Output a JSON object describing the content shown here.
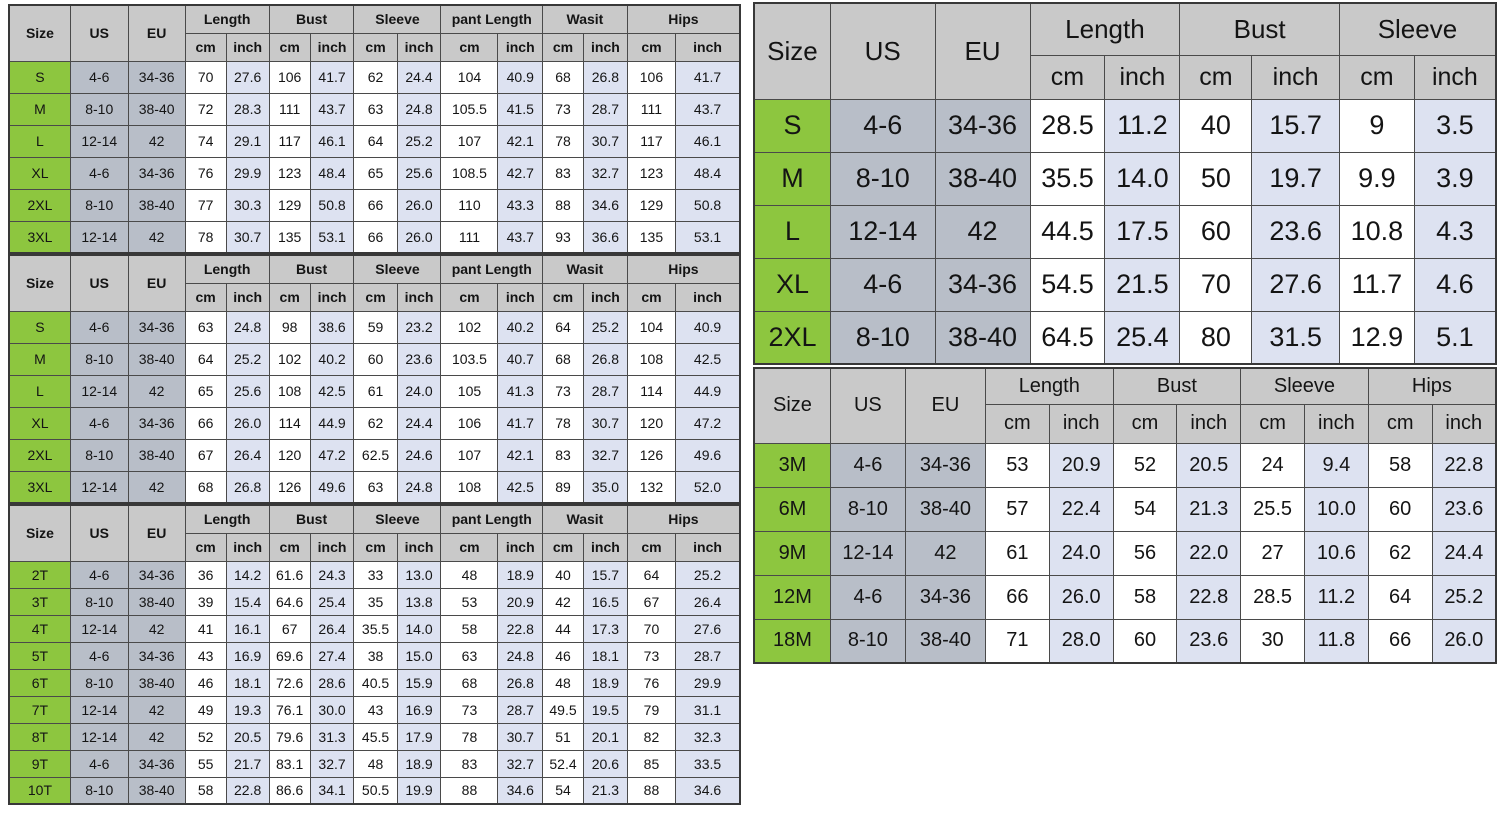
{
  "colors": {
    "header_bg": "#c9c9c9",
    "size_column_bg": "#8dc63f",
    "us_eu_column_bg": "#b8bec8",
    "inch_column_bg": "#dde2f1",
    "cm_column_bg": "#ffffff",
    "border": "#4a4a4a"
  },
  "tables": [
    {
      "name": "adult-pants-set-a",
      "header": {
        "size": "Size",
        "us": "US",
        "eu": "EU",
        "groups": [
          "Length",
          "Bust",
          "Sleeve",
          "pant Length",
          "Wasit",
          "Hips"
        ],
        "units": [
          "cm",
          "inch"
        ]
      },
      "rows": [
        {
          "size": "S",
          "us": "4-6",
          "eu": "34-36",
          "values": [
            "70",
            "27.6",
            "106",
            "41.7",
            "62",
            "24.4",
            "104",
            "40.9",
            "68",
            "26.8",
            "106",
            "41.7"
          ]
        },
        {
          "size": "M",
          "us": "8-10",
          "eu": "38-40",
          "values": [
            "72",
            "28.3",
            "111",
            "43.7",
            "63",
            "24.8",
            "105.5",
            "41.5",
            "73",
            "28.7",
            "111",
            "43.7"
          ]
        },
        {
          "size": "L",
          "us": "12-14",
          "eu": "42",
          "values": [
            "74",
            "29.1",
            "117",
            "46.1",
            "64",
            "25.2",
            "107",
            "42.1",
            "78",
            "30.7",
            "117",
            "46.1"
          ]
        },
        {
          "size": "XL",
          "us": "4-6",
          "eu": "34-36",
          "values": [
            "76",
            "29.9",
            "123",
            "48.4",
            "65",
            "25.6",
            "108.5",
            "42.7",
            "83",
            "32.7",
            "123",
            "48.4"
          ]
        },
        {
          "size": "2XL",
          "us": "8-10",
          "eu": "38-40",
          "values": [
            "77",
            "30.3",
            "129",
            "50.8",
            "66",
            "26.0",
            "110",
            "43.3",
            "88",
            "34.6",
            "129",
            "50.8"
          ]
        },
        {
          "size": "3XL",
          "us": "12-14",
          "eu": "42",
          "values": [
            "78",
            "30.7",
            "135",
            "53.1",
            "66",
            "26.0",
            "111",
            "43.7",
            "93",
            "36.6",
            "135",
            "53.1"
          ]
        }
      ]
    },
    {
      "name": "adult-pants-set-b",
      "header": {
        "size": "Size",
        "us": "US",
        "eu": "EU",
        "groups": [
          "Length",
          "Bust",
          "Sleeve",
          "pant Length",
          "Wasit",
          "Hips"
        ],
        "units": [
          "cm",
          "inch"
        ]
      },
      "rows": [
        {
          "size": "S",
          "us": "4-6",
          "eu": "34-36",
          "values": [
            "63",
            "24.8",
            "98",
            "38.6",
            "59",
            "23.2",
            "102",
            "40.2",
            "64",
            "25.2",
            "104",
            "40.9"
          ]
        },
        {
          "size": "M",
          "us": "8-10",
          "eu": "38-40",
          "values": [
            "64",
            "25.2",
            "102",
            "40.2",
            "60",
            "23.6",
            "103.5",
            "40.7",
            "68",
            "26.8",
            "108",
            "42.5"
          ]
        },
        {
          "size": "L",
          "us": "12-14",
          "eu": "42",
          "values": [
            "65",
            "25.6",
            "108",
            "42.5",
            "61",
            "24.0",
            "105",
            "41.3",
            "73",
            "28.7",
            "114",
            "44.9"
          ]
        },
        {
          "size": "XL",
          "us": "4-6",
          "eu": "34-36",
          "values": [
            "66",
            "26.0",
            "114",
            "44.9",
            "62",
            "24.4",
            "106",
            "41.7",
            "78",
            "30.7",
            "120",
            "47.2"
          ]
        },
        {
          "size": "2XL",
          "us": "8-10",
          "eu": "38-40",
          "values": [
            "67",
            "26.4",
            "120",
            "47.2",
            "62.5",
            "24.6",
            "107",
            "42.1",
            "83",
            "32.7",
            "126",
            "49.6"
          ]
        },
        {
          "size": "3XL",
          "us": "12-14",
          "eu": "42",
          "values": [
            "68",
            "26.8",
            "126",
            "49.6",
            "63",
            "24.8",
            "108",
            "42.5",
            "89",
            "35.0",
            "132",
            "52.0"
          ]
        }
      ]
    },
    {
      "name": "toddler-2t-10t",
      "header": {
        "size": "Size",
        "us": "US",
        "eu": "EU",
        "groups": [
          "Length",
          "Bust",
          "Sleeve",
          "pant Length",
          "Wasit",
          "Hips"
        ],
        "units": [
          "cm",
          "inch"
        ]
      },
      "rows": [
        {
          "size": "2T",
          "us": "4-6",
          "eu": "34-36",
          "values": [
            "36",
            "14.2",
            "61.6",
            "24.3",
            "33",
            "13.0",
            "48",
            "18.9",
            "40",
            "15.7",
            "64",
            "25.2"
          ]
        },
        {
          "size": "3T",
          "us": "8-10",
          "eu": "38-40",
          "values": [
            "39",
            "15.4",
            "64.6",
            "25.4",
            "35",
            "13.8",
            "53",
            "20.9",
            "42",
            "16.5",
            "67",
            "26.4"
          ]
        },
        {
          "size": "4T",
          "us": "12-14",
          "eu": "42",
          "values": [
            "41",
            "16.1",
            "67",
            "26.4",
            "35.5",
            "14.0",
            "58",
            "22.8",
            "44",
            "17.3",
            "70",
            "27.6"
          ]
        },
        {
          "size": "5T",
          "us": "4-6",
          "eu": "34-36",
          "values": [
            "43",
            "16.9",
            "69.6",
            "27.4",
            "38",
            "15.0",
            "63",
            "24.8",
            "46",
            "18.1",
            "73",
            "28.7"
          ]
        },
        {
          "size": "6T",
          "us": "8-10",
          "eu": "38-40",
          "values": [
            "46",
            "18.1",
            "72.6",
            "28.6",
            "40.5",
            "15.9",
            "68",
            "26.8",
            "48",
            "18.9",
            "76",
            "29.9"
          ]
        },
        {
          "size": "7T",
          "us": "12-14",
          "eu": "42",
          "values": [
            "49",
            "19.3",
            "76.1",
            "30.0",
            "43",
            "16.9",
            "73",
            "28.7",
            "49.5",
            "19.5",
            "79",
            "31.1"
          ]
        },
        {
          "size": "8T",
          "us": "12-14",
          "eu": "42",
          "values": [
            "52",
            "20.5",
            "79.6",
            "31.3",
            "45.5",
            "17.9",
            "78",
            "30.7",
            "51",
            "20.1",
            "82",
            "32.3"
          ]
        },
        {
          "size": "9T",
          "us": "4-6",
          "eu": "34-36",
          "values": [
            "55",
            "21.7",
            "83.1",
            "32.7",
            "48",
            "18.9",
            "83",
            "32.7",
            "52.4",
            "20.6",
            "85",
            "33.5"
          ]
        },
        {
          "size": "10T",
          "us": "8-10",
          "eu": "38-40",
          "values": [
            "58",
            "22.8",
            "86.6",
            "34.1",
            "50.5",
            "19.9",
            "88",
            "34.6",
            "54",
            "21.3",
            "88",
            "34.6"
          ]
        }
      ]
    },
    {
      "name": "top-s-2xl",
      "header": {
        "size": "Size",
        "us": "US",
        "eu": "EU",
        "groups": [
          "Length",
          "Bust",
          "Sleeve"
        ],
        "units": [
          "cm",
          "inch"
        ]
      },
      "rows": [
        {
          "size": "S",
          "us": "4-6",
          "eu": "34-36",
          "values": [
            "28.5",
            "11.2",
            "40",
            "15.7",
            "9",
            "3.5"
          ]
        },
        {
          "size": "M",
          "us": "8-10",
          "eu": "38-40",
          "values": [
            "35.5",
            "14.0",
            "50",
            "19.7",
            "9.9",
            "3.9"
          ]
        },
        {
          "size": "L",
          "us": "12-14",
          "eu": "42",
          "values": [
            "44.5",
            "17.5",
            "60",
            "23.6",
            "10.8",
            "4.3"
          ]
        },
        {
          "size": "XL",
          "us": "4-6",
          "eu": "34-36",
          "values": [
            "54.5",
            "21.5",
            "70",
            "27.6",
            "11.7",
            "4.6"
          ]
        },
        {
          "size": "2XL",
          "us": "8-10",
          "eu": "38-40",
          "values": [
            "64.5",
            "25.4",
            "80",
            "31.5",
            "12.9",
            "5.1"
          ]
        }
      ]
    },
    {
      "name": "baby-3m-18m",
      "header": {
        "size": "Size",
        "us": "US",
        "eu": "EU",
        "groups": [
          "Length",
          "Bust",
          "Sleeve",
          "Hips"
        ],
        "units": [
          "cm",
          "inch"
        ]
      },
      "rows": [
        {
          "size": "3M",
          "us": "4-6",
          "eu": "34-36",
          "values": [
            "53",
            "20.9",
            "52",
            "20.5",
            "24",
            "9.4",
            "58",
            "22.8"
          ]
        },
        {
          "size": "6M",
          "us": "8-10",
          "eu": "38-40",
          "values": [
            "57",
            "22.4",
            "54",
            "21.3",
            "25.5",
            "10.0",
            "60",
            "23.6"
          ]
        },
        {
          "size": "9M",
          "us": "12-14",
          "eu": "42",
          "values": [
            "61",
            "24.0",
            "56",
            "22.0",
            "27",
            "10.6",
            "62",
            "24.4"
          ]
        },
        {
          "size": "12M",
          "us": "4-6",
          "eu": "34-36",
          "values": [
            "66",
            "26.0",
            "58",
            "22.8",
            "28.5",
            "11.2",
            "64",
            "25.2"
          ]
        },
        {
          "size": "18M",
          "us": "8-10",
          "eu": "38-40",
          "values": [
            "71",
            "28.0",
            "60",
            "23.6",
            "30",
            "11.8",
            "66",
            "26.0"
          ]
        }
      ]
    }
  ]
}
